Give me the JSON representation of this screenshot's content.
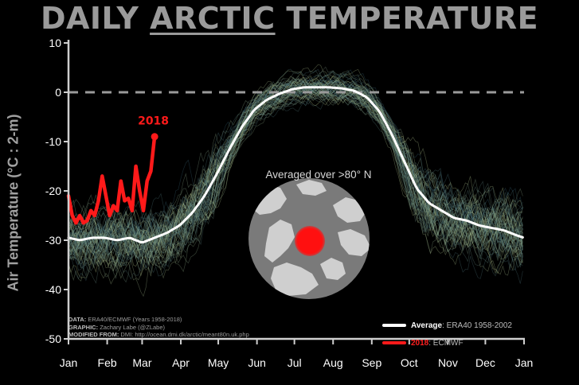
{
  "title": {
    "pre": "DAILY ",
    "highlight": "ARCTIC",
    "post": " TEMPERATURE"
  },
  "inset": {
    "label": "Averaged over >80° N"
  },
  "credits": {
    "data_label": "DATA:",
    "data_value": "ERA40/ECMWF (Years 1958-2018)",
    "graphic_label": "GRAPHIC:",
    "graphic_value": "Zachary Labe (@ZLabe)",
    "modified_label": "MODIFIED FROM:",
    "modified_value": "DMI: http://ocean.dmi.dk/arctic/meant80n.uk.php"
  },
  "legend": {
    "average_name": "Average",
    "average_desc": ": ERA40 1958-2002",
    "current_name": "2018",
    "current_desc": ": ECMWF"
  },
  "colors": {
    "background": "#000000",
    "average_line": "#ffffff",
    "current_line": "#ff1a1a",
    "ensemble_high": "#d9e8a0",
    "ensemble_low": "#2a5c7a",
    "axes": "#cfcfcf",
    "zero_line": "#9a9a9a",
    "title_gray": "#9a9a9a"
  },
  "chart_data": {
    "type": "line",
    "ylabel": "Air Temperature (°C : 2-m)",
    "ylim": [
      -50,
      10
    ],
    "yticks": [
      10,
      0,
      -10,
      -20,
      -30,
      -40,
      -50
    ],
    "xlim": [
      1,
      366
    ],
    "xticks": [
      {
        "label": "Jan",
        "day": 1
      },
      {
        "label": "Feb",
        "day": 32
      },
      {
        "label": "Mar",
        "day": 60
      },
      {
        "label": "Apr",
        "day": 91
      },
      {
        "label": "May",
        "day": 121
      },
      {
        "label": "Jun",
        "day": 152
      },
      {
        "label": "Jul",
        "day": 182
      },
      {
        "label": "Aug",
        "day": 213
      },
      {
        "label": "Sep",
        "day": 244
      },
      {
        "label": "Oct",
        "day": 274
      },
      {
        "label": "Nov",
        "day": 305
      },
      {
        "label": "Dec",
        "day": 335
      },
      {
        "label": "Jan",
        "day": 366
      }
    ],
    "reference_line": {
      "y": 0,
      "style": "dashed"
    },
    "series": [
      {
        "name": "Average",
        "x": [
          1,
          10,
          20,
          30,
          40,
          50,
          60,
          70,
          80,
          90,
          100,
          110,
          120,
          130,
          140,
          150,
          160,
          170,
          180,
          190,
          200,
          210,
          220,
          230,
          240,
          250,
          260,
          270,
          280,
          290,
          300,
          310,
          320,
          330,
          340,
          350,
          360,
          366
        ],
        "y": [
          -29.5,
          -30,
          -29.5,
          -29.5,
          -30,
          -29.5,
          -30.5,
          -29.5,
          -28.5,
          -27,
          -24.5,
          -21,
          -16.5,
          -11.5,
          -7,
          -3.5,
          -1.5,
          -0.3,
          0.6,
          1,
          1,
          1,
          0.8,
          0.3,
          -1,
          -3.8,
          -8.5,
          -14,
          -19.5,
          -22.5,
          -24,
          -25.5,
          -26,
          -27,
          -27.5,
          -28,
          -29,
          -29.5
        ]
      },
      {
        "name": "2018",
        "x": [
          1,
          4,
          7,
          10,
          13,
          16,
          19,
          22,
          25,
          28,
          31,
          34,
          37,
          40,
          43,
          46,
          49,
          52,
          55,
          58,
          61,
          64,
          67,
          70
        ],
        "y": [
          -21,
          -25,
          -26.5,
          -25,
          -26.5,
          -26,
          -24,
          -25,
          -22,
          -17,
          -21,
          -25,
          -23,
          -24,
          -18,
          -22,
          -21.5,
          -24,
          -15,
          -20,
          -24,
          -18,
          -16,
          -9
        ]
      }
    ],
    "annotations": [
      {
        "text": "2018",
        "x": 69,
        "y": -6.5
      }
    ],
    "ensemble": {
      "years": "1958-2018",
      "count": 61
    }
  }
}
